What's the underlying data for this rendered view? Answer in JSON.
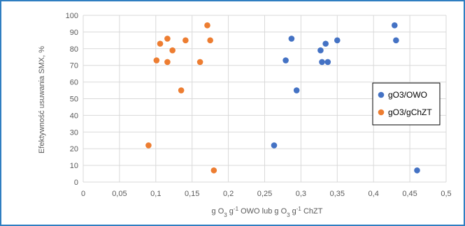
{
  "chart_data": {
    "type": "scatter",
    "title": "",
    "xlabel_parts": [
      "g O",
      "3",
      " g",
      "-1",
      " OWO lub g O",
      "3",
      " g",
      "-1",
      " ChZT"
    ],
    "ylabel": "Efektywność usuwania SMX, %",
    "xlim": [
      0,
      0.5
    ],
    "ylim": [
      0,
      100
    ],
    "xticks": [
      0,
      0.05,
      0.1,
      0.15,
      0.2,
      0.25,
      0.3,
      0.35,
      0.4,
      0.45,
      0.5
    ],
    "xtick_labels": [
      "0",
      "0,05",
      "0,1",
      "0,15",
      "0,2",
      "0,25",
      "0,3",
      "0,35",
      "0,4",
      "0,45",
      "0,5"
    ],
    "yticks": [
      0,
      10,
      20,
      30,
      40,
      50,
      60,
      70,
      80,
      90,
      100
    ],
    "ytick_labels": [
      "0",
      "10",
      "20",
      "30",
      "40",
      "50",
      "60",
      "70",
      "80",
      "90",
      "100"
    ],
    "grid": true,
    "legend_position": "right",
    "series": [
      {
        "name": "gO3/OWO",
        "color": "#4472c4",
        "points": [
          [
            0.263,
            22
          ],
          [
            0.279,
            73
          ],
          [
            0.287,
            86
          ],
          [
            0.294,
            55
          ],
          [
            0.327,
            79
          ],
          [
            0.329,
            72
          ],
          [
            0.334,
            83
          ],
          [
            0.337,
            72
          ],
          [
            0.35,
            85
          ],
          [
            0.429,
            94
          ],
          [
            0.431,
            85
          ],
          [
            0.46,
            7
          ]
        ]
      },
      {
        "name": "gO3/gChZT",
        "color": "#ed7d31",
        "points": [
          [
            0.09,
            22
          ],
          [
            0.101,
            73
          ],
          [
            0.106,
            83
          ],
          [
            0.116,
            86
          ],
          [
            0.116,
            72
          ],
          [
            0.123,
            79
          ],
          [
            0.135,
            55
          ],
          [
            0.141,
            85
          ],
          [
            0.161,
            72
          ],
          [
            0.171,
            94
          ],
          [
            0.175,
            85
          ],
          [
            0.18,
            7
          ]
        ]
      }
    ]
  }
}
